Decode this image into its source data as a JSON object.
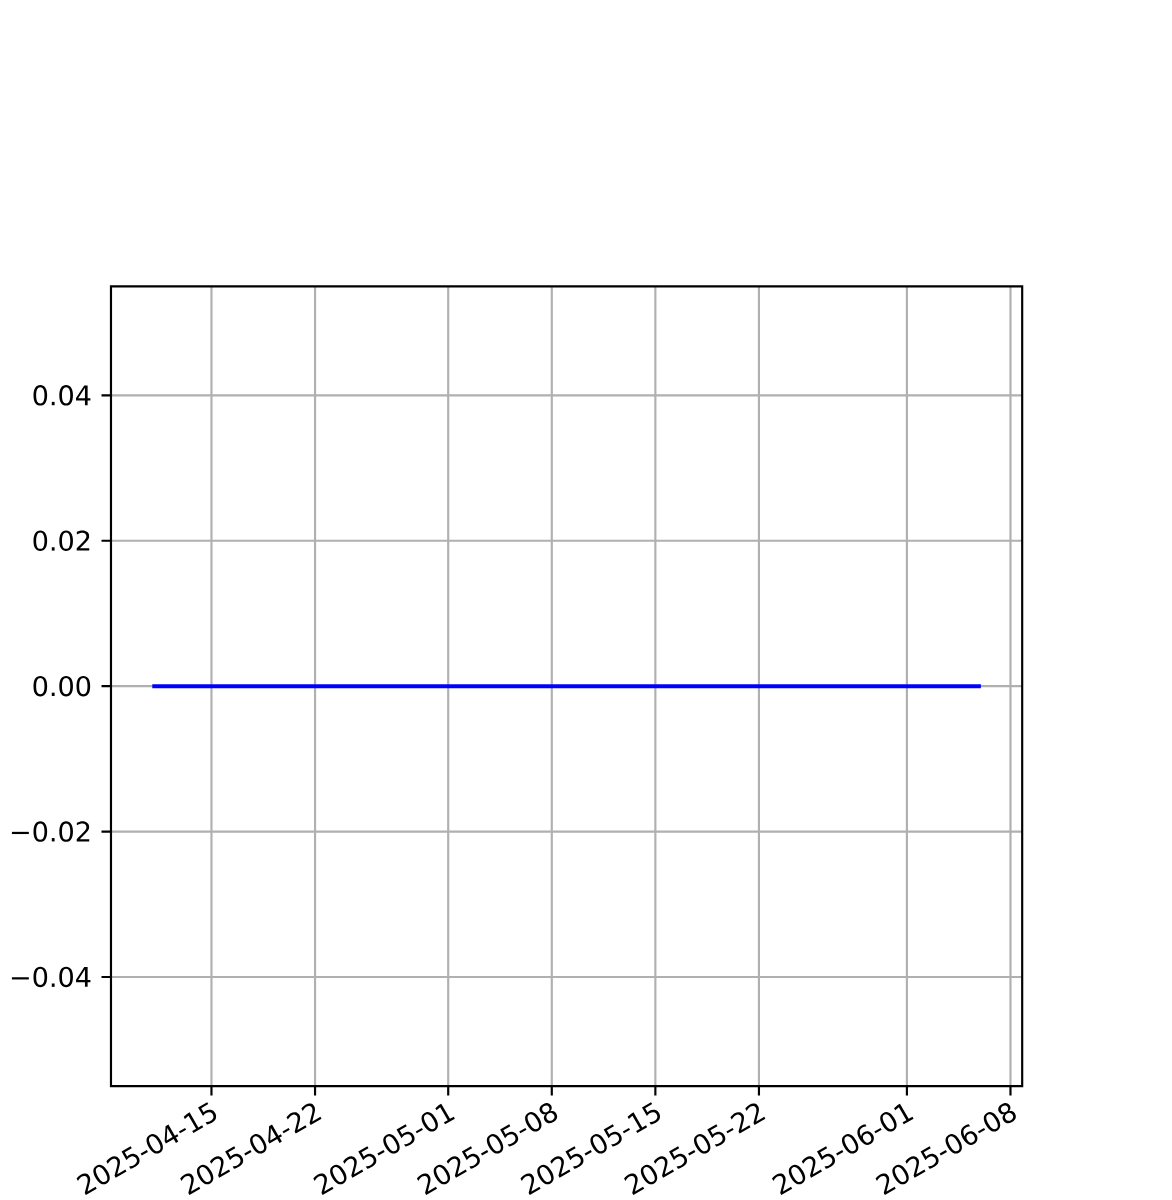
{
  "chart_data": {
    "type": "line",
    "x": [
      "2025-04-11",
      "2025-06-06"
    ],
    "values": [
      0,
      0
    ],
    "color": "#0000ff",
    "xlim": [
      "2025-04-08T05:00",
      "2025-06-08T19:00"
    ],
    "xticks": [
      "2025-04-15",
      "2025-04-22",
      "2025-05-01",
      "2025-05-08",
      "2025-05-15",
      "2025-05-22",
      "2025-06-01",
      "2025-06-08"
    ],
    "ylim": [
      -0.055,
      0.055
    ],
    "yticks": [
      {
        "value": -0.04,
        "label": "−0.04"
      },
      {
        "value": -0.02,
        "label": "−0.02"
      },
      {
        "value": 0,
        "label": "0.00"
      },
      {
        "value": 0.02,
        "label": "0.02"
      },
      {
        "value": 0.04,
        "label": "0.04"
      }
    ],
    "grid": true
  }
}
